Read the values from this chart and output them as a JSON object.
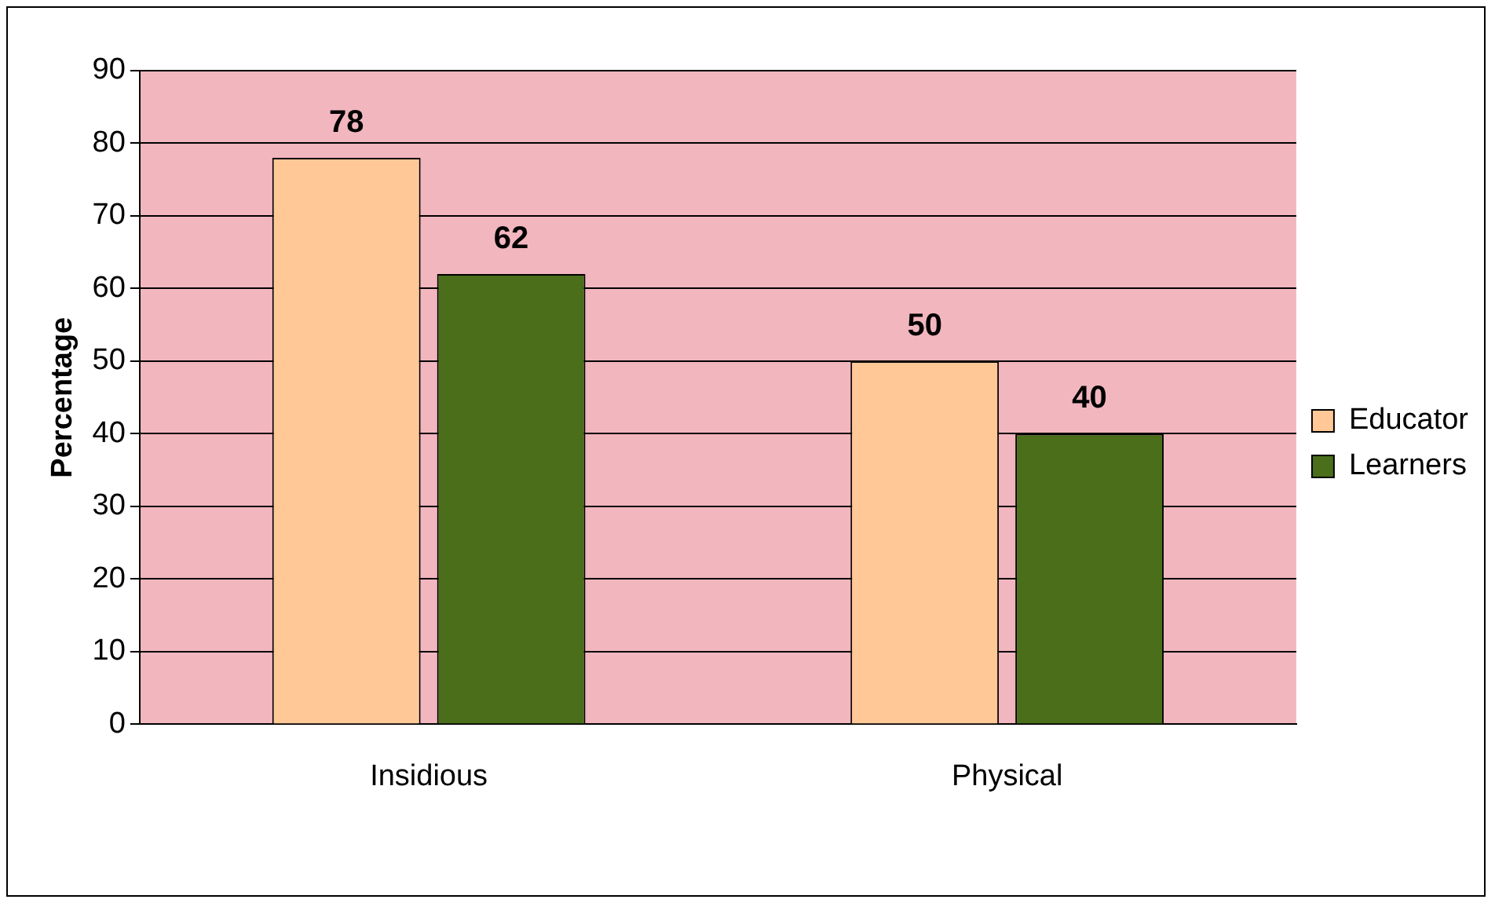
{
  "chart_data": {
    "type": "bar",
    "ylabel": "Percentage",
    "categories": [
      "Insidious",
      "Physical"
    ],
    "series": [
      {
        "name": "Educator",
        "color": "#ffc896",
        "values": [
          78,
          50
        ]
      },
      {
        "name": "Learners",
        "color": "#4a6e1a",
        "values": [
          62,
          40
        ]
      }
    ],
    "ylim": [
      0,
      90
    ],
    "yticks": [
      0,
      10,
      20,
      30,
      40,
      50,
      60,
      70,
      80,
      90
    ],
    "grid": "y",
    "legend": "right",
    "data_labels": true
  }
}
